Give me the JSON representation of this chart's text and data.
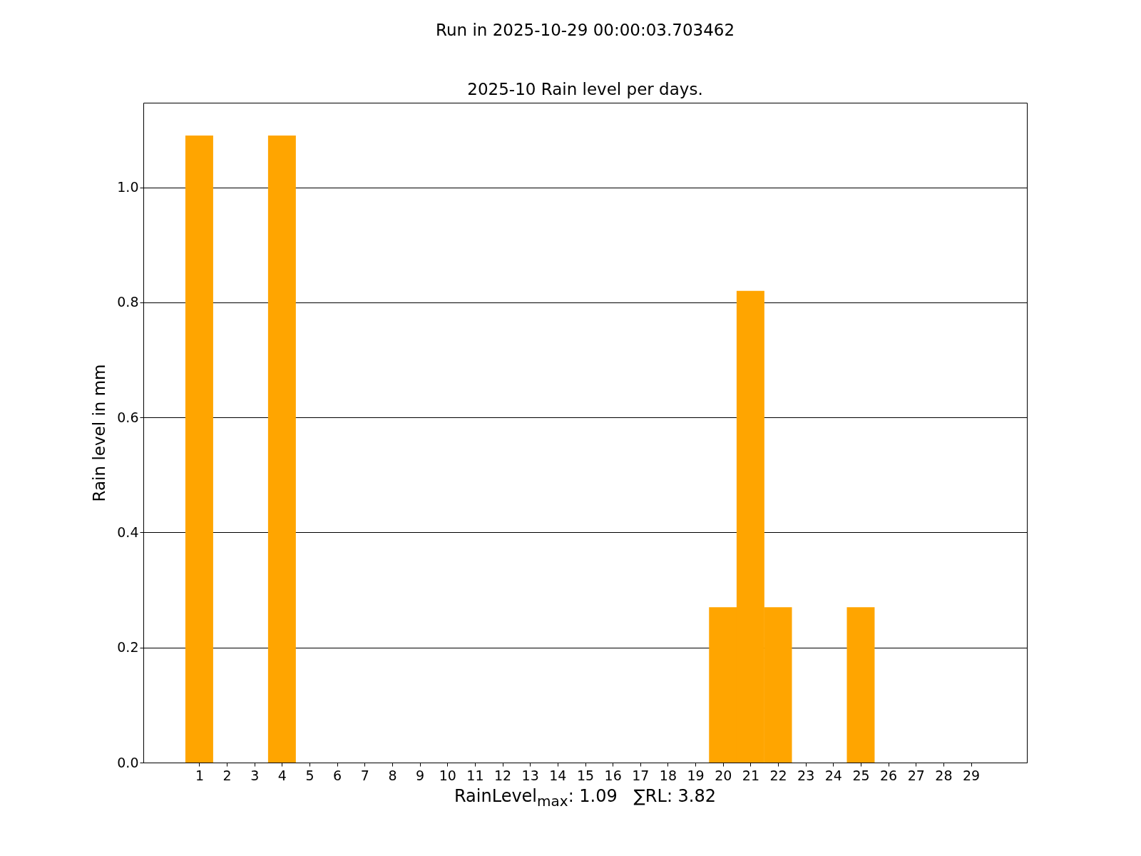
{
  "chart_data": {
    "type": "bar",
    "title": "Run in 2025-10-29 00:00:03.703462",
    "subtitle": "2025-10 Rain level per days.",
    "xlabel": "RainLevel$_{max}$: 1.09   ∑RL: 3.82",
    "ylabel": "Rain level in mm",
    "x": [
      1,
      2,
      3,
      4,
      5,
      6,
      7,
      8,
      9,
      10,
      11,
      12,
      13,
      14,
      15,
      16,
      17,
      18,
      19,
      20,
      21,
      22,
      23,
      24,
      25,
      26,
      27,
      28,
      29
    ],
    "values": [
      1.09,
      0,
      0,
      1.09,
      0,
      0,
      0,
      0,
      0,
      0,
      0,
      0,
      0,
      0,
      0,
      0,
      0,
      0,
      0,
      0.27,
      0.82,
      0.27,
      0,
      0,
      0.27,
      0,
      0,
      0,
      0
    ],
    "color": "#ffa500",
    "xlim": [
      -0.9,
      30.9
    ],
    "xticks": [
      1,
      2,
      3,
      4,
      5,
      6,
      7,
      8,
      9,
      10,
      11,
      12,
      13,
      14,
      15,
      16,
      17,
      18,
      19,
      20,
      21,
      22,
      23,
      24,
      25,
      26,
      27,
      28,
      29
    ],
    "ylim": [
      0,
      1.147
    ],
    "yticks": [
      {
        "value": 0,
        "label": "0.0"
      },
      0.2,
      0.4,
      0.6,
      0.8,
      {
        "value": 1,
        "label": "1.0"
      }
    ],
    "grid": "y"
  }
}
